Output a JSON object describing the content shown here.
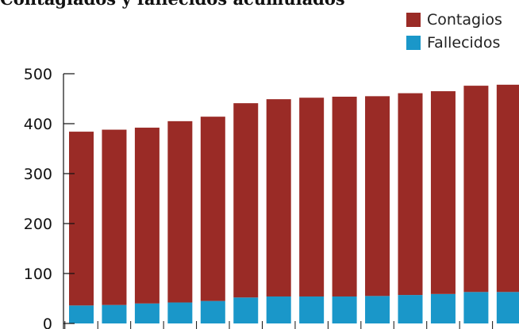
{
  "chart_data": {
    "type": "bar",
    "stacked": true,
    "title": "Contagiados y fallecidos acumulados",
    "categories": [
      "",
      "",
      "",
      "",
      "",
      "",
      "",
      "",
      "",
      "",
      "",
      "",
      "",
      ""
    ],
    "series": [
      {
        "name": "Fallecidos",
        "color": "#1a97c9",
        "values": [
          36,
          37,
          40,
          42,
          45,
          52,
          54,
          54,
          54,
          55,
          57,
          59,
          63,
          63
        ]
      },
      {
        "name": "Contagios",
        "color": "#9a2b26",
        "values": [
          348,
          351,
          352,
          363,
          369,
          389,
          395,
          398,
          400,
          400,
          404,
          406,
          413,
          415
        ]
      }
    ],
    "totals": [
      384,
      388,
      392,
      405,
      414,
      441,
      449,
      452,
      454,
      455,
      461,
      465,
      476,
      478
    ],
    "yticks": [
      0,
      100,
      200,
      300,
      400,
      500
    ],
    "ylim": [
      0,
      500
    ],
    "legend": "top-right",
    "grid": false
  }
}
